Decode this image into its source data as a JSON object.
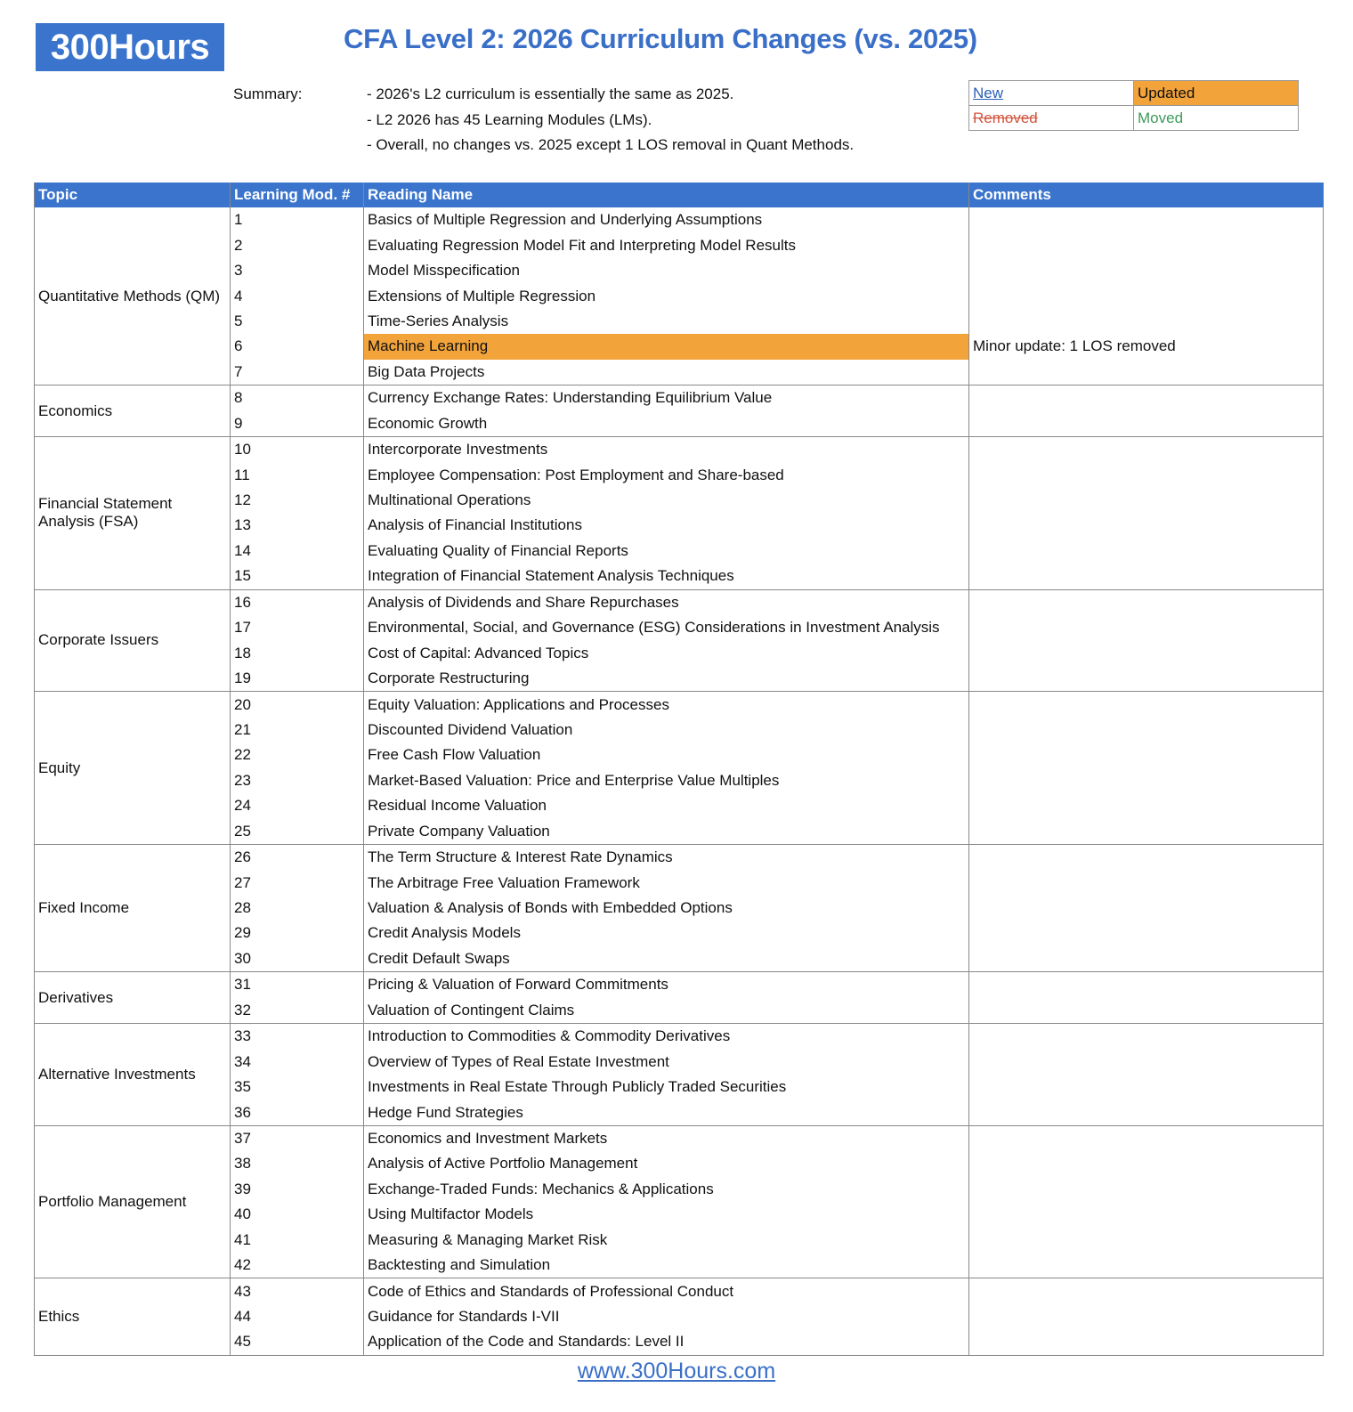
{
  "logo": "300Hours",
  "title": "CFA Level 2: 2026 Curriculum Changes (vs. 2025)",
  "summary": {
    "label": "Summary:",
    "lines": [
      "- 2026's L2 curriculum is essentially the same as 2025.",
      "- L2 2026 has 45 Learning Modules (LMs).",
      "- Overall, no changes vs. 2025 except 1 LOS removal in Quant Methods."
    ]
  },
  "legend": {
    "new": "New",
    "updated": "Updated",
    "removed": "Removed",
    "moved": "Moved",
    "colors": {
      "new": "#2b5fb3",
      "updated": "#f2a33a",
      "removed": "#d2553f",
      "moved": "#3d9a5c"
    }
  },
  "table": {
    "headers": [
      "Topic",
      "Learning Mod. #",
      "Reading Name",
      "Comments"
    ],
    "groups": [
      {
        "topic": "Quantitative Methods (QM)",
        "rows": [
          {
            "num": "1",
            "name": "Basics of Multiple Regression and Underlying Assumptions"
          },
          {
            "num": "2",
            "name": "Evaluating Regression Model Fit and Interpreting Model Results"
          },
          {
            "num": "3",
            "name": "Model Misspecification"
          },
          {
            "num": "4",
            "name": "Extensions of Multiple Regression"
          },
          {
            "num": "5",
            "name": "Time-Series Analysis"
          },
          {
            "num": "6",
            "name": "Machine Learning",
            "status": "updated",
            "comment": "Minor update: 1 LOS removed"
          },
          {
            "num": "7",
            "name": "Big Data Projects"
          }
        ]
      },
      {
        "topic": "Economics",
        "rows": [
          {
            "num": "8",
            "name": "Currency Exchange Rates: Understanding Equilibrium Value"
          },
          {
            "num": "9",
            "name": "Economic Growth"
          }
        ]
      },
      {
        "topic": "Financial Statement Analysis (FSA)",
        "rows": [
          {
            "num": "10",
            "name": "Intercorporate Investments"
          },
          {
            "num": "11",
            "name": "Employee Compensation: Post Employment and Share-based"
          },
          {
            "num": "12",
            "name": "Multinational Operations"
          },
          {
            "num": "13",
            "name": "Analysis of Financial Institutions"
          },
          {
            "num": "14",
            "name": "Evaluating Quality of Financial Reports"
          },
          {
            "num": "15",
            "name": "Integration of Financial Statement Analysis Techniques"
          }
        ]
      },
      {
        "topic": "Corporate Issuers",
        "rows": [
          {
            "num": "16",
            "name": "Analysis of Dividends and Share Repurchases"
          },
          {
            "num": "17",
            "name": "Environmental, Social, and Governance (ESG) Considerations in Investment Analysis"
          },
          {
            "num": "18",
            "name": "Cost of Capital: Advanced Topics"
          },
          {
            "num": "19",
            "name": "Corporate Restructuring"
          }
        ]
      },
      {
        "topic": "Equity",
        "rows": [
          {
            "num": "20",
            "name": "Equity Valuation: Applications and Processes"
          },
          {
            "num": "21",
            "name": "Discounted Dividend Valuation"
          },
          {
            "num": "22",
            "name": "Free Cash Flow Valuation"
          },
          {
            "num": "23",
            "name": "Market-Based Valuation: Price and Enterprise Value Multiples"
          },
          {
            "num": "24",
            "name": "Residual Income Valuation"
          },
          {
            "num": "25",
            "name": "Private Company Valuation"
          }
        ]
      },
      {
        "topic": "Fixed Income",
        "rows": [
          {
            "num": "26",
            "name": "The Term Structure & Interest Rate Dynamics"
          },
          {
            "num": "27",
            "name": "The Arbitrage Free Valuation Framework"
          },
          {
            "num": "28",
            "name": "Valuation & Analysis of Bonds with Embedded Options"
          },
          {
            "num": "29",
            "name": "Credit Analysis Models"
          },
          {
            "num": "30",
            "name": "Credit Default Swaps"
          }
        ]
      },
      {
        "topic": "Derivatives",
        "rows": [
          {
            "num": "31",
            "name": "Pricing & Valuation of Forward Commitments"
          },
          {
            "num": "32",
            "name": "Valuation of Contingent Claims"
          }
        ]
      },
      {
        "topic": "Alternative Investments",
        "rows": [
          {
            "num": "33",
            "name": "Introduction to Commodities & Commodity Derivatives"
          },
          {
            "num": "34",
            "name": "Overview of Types of Real Estate Investment"
          },
          {
            "num": "35",
            "name": "Investments in Real Estate Through Publicly Traded Securities"
          },
          {
            "num": "36",
            "name": "Hedge Fund Strategies"
          }
        ]
      },
      {
        "topic": "Portfolio Management",
        "rows": [
          {
            "num": "37",
            "name": "Economics and Investment Markets"
          },
          {
            "num": "38",
            "name": "Analysis of Active Portfolio Management"
          },
          {
            "num": "39",
            "name": "Exchange-Traded Funds: Mechanics & Applications"
          },
          {
            "num": "40",
            "name": "Using Multifactor Models"
          },
          {
            "num": "41",
            "name": "Measuring & Managing Market Risk"
          },
          {
            "num": "42",
            "name": "Backtesting and Simulation"
          }
        ]
      },
      {
        "topic": "Ethics",
        "rows": [
          {
            "num": "43",
            "name": "Code of Ethics and Standards of Professional Conduct"
          },
          {
            "num": "44",
            "name": "Guidance for Standards I-VII"
          },
          {
            "num": "45",
            "name": "Application of the Code and Standards: Level II"
          }
        ]
      }
    ]
  },
  "footer": "www.300Hours.com"
}
